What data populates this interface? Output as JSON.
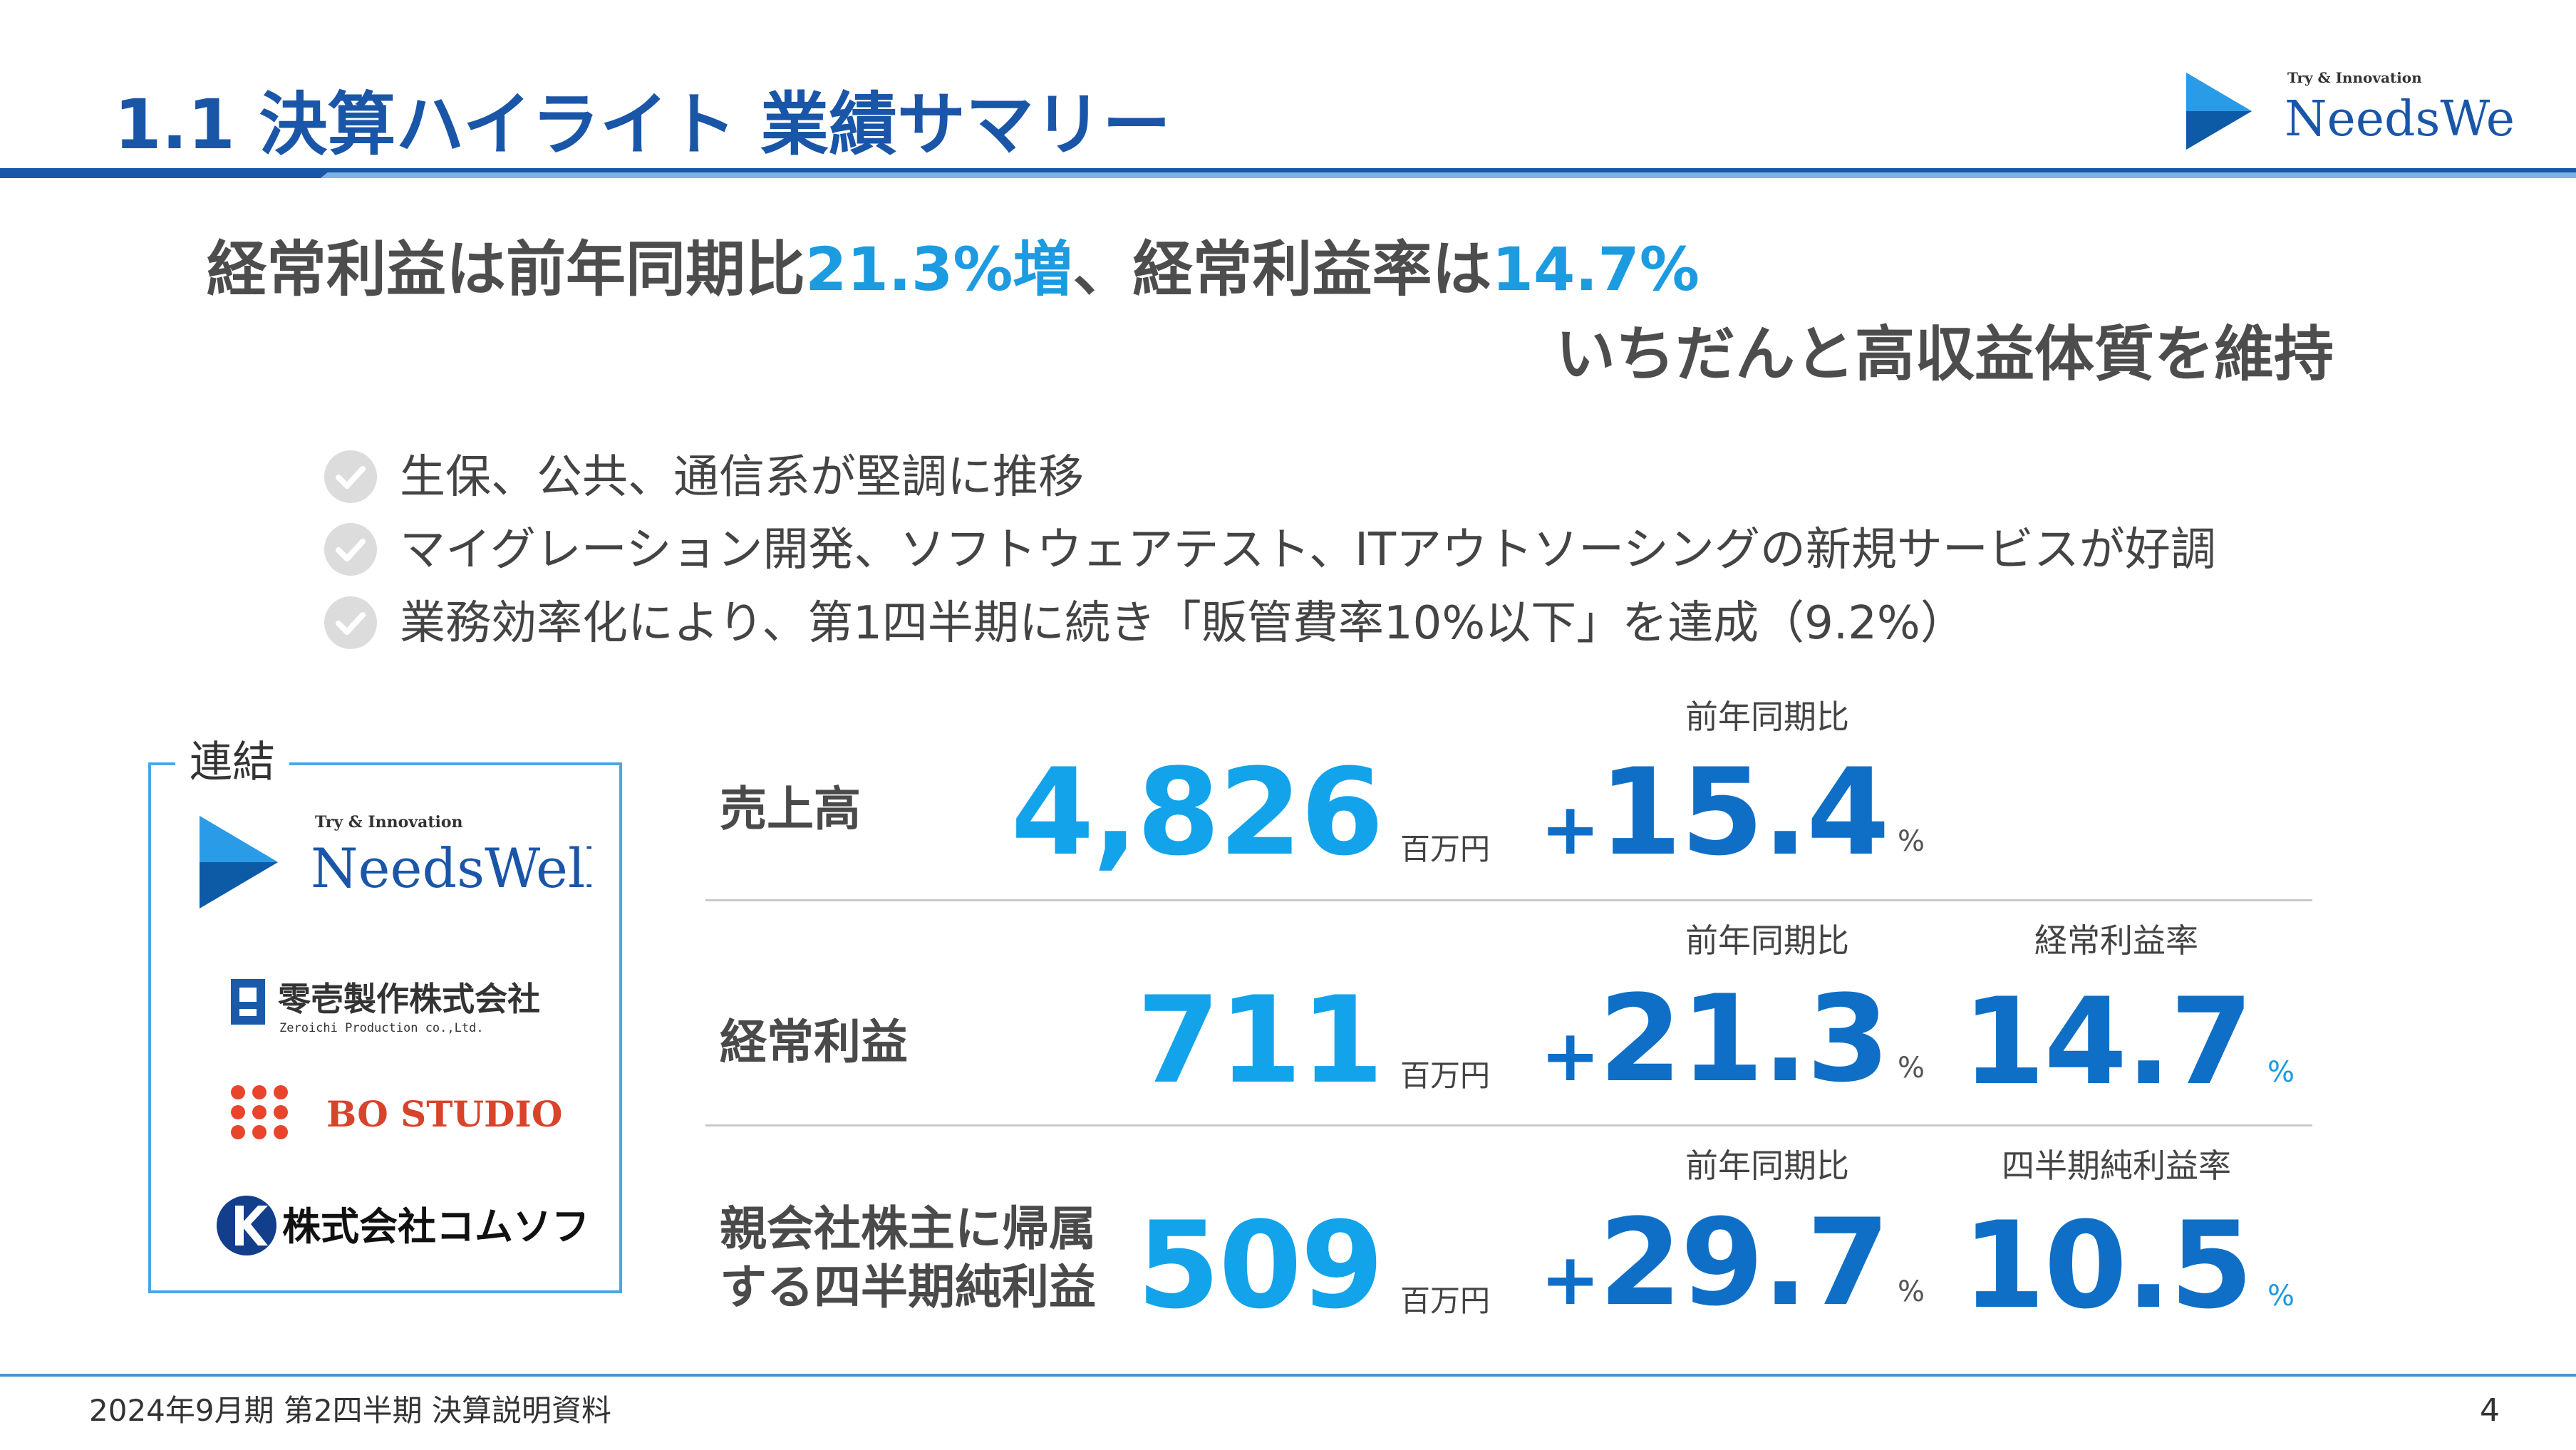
{
  "header": {
    "title": "1.1  決算ハイライト  業績サマリー",
    "logo_tagline": "Try & Innovation",
    "logo_name": "NeedsWell"
  },
  "headline": {
    "line1_part1": "経常利益は前年同期比",
    "line1_accent1": "21.3%増",
    "line1_part2": "、経常利益率は",
    "line1_accent2": "14.7%",
    "line2": "いちだんと高収益体質を維持"
  },
  "bullets": [
    "生保、公共、通信系が堅調に推移",
    "マイグレーション開発、ソフトウェアテスト、ITアウトソーシングの新規サービスが好調",
    "業務効率化により、第1四半期に続き「販管費率10%以下」を達成（9.2%）"
  ],
  "group": {
    "label": "連結",
    "companies": {
      "needswell_tagline": "Try & Innovation",
      "needswell_name": "NeedsWell",
      "zeroichi_name": "零壱製作株式会社",
      "zeroichi_sub": "Zeroichi Production co.,Ltd.",
      "bostudio_name": "BO STUDIO",
      "comsoft_name": "株式会社コムソフト"
    }
  },
  "metrics": {
    "unit_oku": "百万円",
    "pct": "%",
    "plus": "+",
    "yoy_header": "前年同期比",
    "sales": {
      "label": "売上高",
      "value": "4,826",
      "yoy": "15.4"
    },
    "ordinary": {
      "label": "経常利益",
      "value": "711",
      "yoy": "21.3",
      "ratio_header": "経常利益率",
      "ratio": "14.7"
    },
    "net": {
      "label": "親会社株主に帰属\nする四半期純利益",
      "value": "509",
      "yoy": "29.7",
      "ratio_header": "四半期純利益率",
      "ratio": "10.5"
    }
  },
  "footer": {
    "text": "2024年9月期 第2四半期 決算説明資料",
    "page": "4"
  },
  "colors": {
    "title_blue": "#1a56a8",
    "accent_cyan": "#1c9be0",
    "value_blue": "#0f6fc6",
    "value_cyan": "#12a3ea"
  }
}
